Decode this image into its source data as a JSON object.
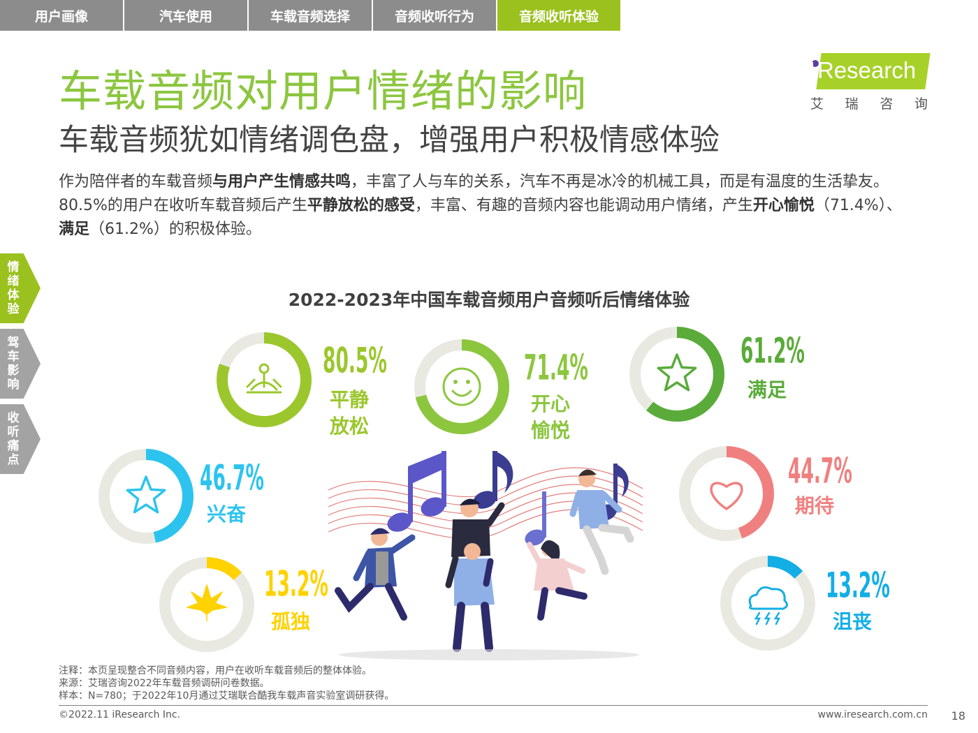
{
  "nav": {
    "tabs": [
      {
        "label": "用户画像",
        "active": false
      },
      {
        "label": "汽车使用",
        "active": false
      },
      {
        "label": "车载音频选择",
        "active": false
      },
      {
        "label": "音频收听行为",
        "active": false
      },
      {
        "label": "音频收听体验",
        "active": true
      }
    ]
  },
  "header": {
    "title": "车载音频对用户情绪的影响",
    "subtitle": "车载音频犹如情绪调色盘，增强用户积极情感体验"
  },
  "logo": {
    "word": "Research",
    "cn": [
      "艾",
      "瑞",
      "咨",
      "询"
    ]
  },
  "intro": {
    "p1a": "作为陪伴者的车载音频",
    "p1b": "与用户产生情感共鸣",
    "p1c": "，丰富了人与车的关系，汽车不再是冰冷的机械工具，而是有温度的生活挚友。",
    "p2a": "80.5%的用户在收听车载音频后产生",
    "p2b": "平静放松的感受",
    "p2c": "，丰富、有趣的音频内容也能调动用户情绪，产生",
    "p2d": "开心愉悦",
    "p2e": "（71.4%）、",
    "p3a": "满足",
    "p3b": "（61.2%）的积极体验。"
  },
  "side_tabs": [
    {
      "label": "情绪体验",
      "active": true
    },
    {
      "label": "驾车影响",
      "active": false
    },
    {
      "label": "收听痛点",
      "active": false
    }
  ],
  "chart_data": {
    "type": "donut",
    "title": "2022-2023年中国车载音频用户音频听后情绪体验",
    "unit": "%",
    "series": [
      {
        "category": "平静放松",
        "value": 80.5,
        "value_label": "80.5%",
        "color": "#9bc72c",
        "icon": "meditation-icon"
      },
      {
        "category": "开心愉悦",
        "value": 71.4,
        "value_label": "71.4%",
        "color": "#8cc63f",
        "icon": "smiley-icon"
      },
      {
        "category": "满足",
        "value": 61.2,
        "value_label": "61.2%",
        "color": "#5aab3a",
        "icon": "star-icon"
      },
      {
        "category": "兴奋",
        "value": 46.7,
        "value_label": "46.7%",
        "color": "#2cc4ee",
        "icon": "star-icon"
      },
      {
        "category": "期待",
        "value": 44.7,
        "value_label": "44.7%",
        "color": "#f08080",
        "icon": "heart-icon"
      },
      {
        "category": "孤独",
        "value": 13.2,
        "value_label": "13.2%",
        "color": "#ffd200",
        "icon": "leaf-icon"
      },
      {
        "category": "沮丧",
        "value": 13.2,
        "value_label": "13.2%",
        "color": "#13aee6",
        "icon": "storm-cloud-icon"
      }
    ]
  },
  "illustration": {
    "name": "people-dancing-with-music-notes-illustration"
  },
  "footer": {
    "note": "注释：本页呈现整合不同音频内容，用户在收听车载音频后的整体体验。",
    "source": "来源：艾瑞咨询2022年车载音频调研问卷数据。",
    "sample": "样本：N=780；于2022年10月通过艾瑞联合酷我车载声音实验室调研获得。",
    "copyright": "©2022.11 iResearch Inc.",
    "website": "www.iresearch.com.cn",
    "page": "18"
  }
}
